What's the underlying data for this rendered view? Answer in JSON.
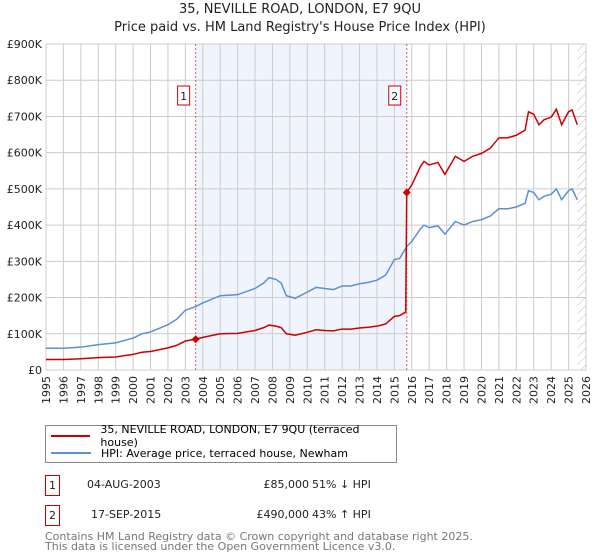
{
  "chart_data": {
    "type": "line",
    "title": "35, NEVILLE ROAD, LONDON, E7 9QU",
    "subtitle": "Price paid vs. HM Land Registry's House Price Index (HPI)",
    "xlim": [
      1995,
      2026
    ],
    "ylim": [
      0,
      900000
    ],
    "x_ticks": [
      "1995",
      "1996",
      "1997",
      "1998",
      "1999",
      "2000",
      "2001",
      "2002",
      "2003",
      "2004",
      "2005",
      "2006",
      "2007",
      "2008",
      "2009",
      "2010",
      "2011",
      "2012",
      "2013",
      "2014",
      "2015",
      "2016",
      "2017",
      "2018",
      "2019",
      "2020",
      "2021",
      "2022",
      "2023",
      "2024",
      "2025",
      "2026"
    ],
    "y_ticks": [
      {
        "v": 0,
        "l": "£0"
      },
      {
        "v": 100000,
        "l": "£100K"
      },
      {
        "v": 200000,
        "l": "£200K"
      },
      {
        "v": 300000,
        "l": "£300K"
      },
      {
        "v": 400000,
        "l": "£400K"
      },
      {
        "v": 500000,
        "l": "£500K"
      },
      {
        "v": 600000,
        "l": "£600K"
      },
      {
        "v": 700000,
        "l": "£700K"
      },
      {
        "v": 800000,
        "l": "£800K"
      },
      {
        "v": 900000,
        "l": "£900K"
      }
    ],
    "grid": true,
    "shaded_range": [
      2003.59,
      2015.71
    ],
    "forecast_hatch_from": 2025.5,
    "series": [
      {
        "name": "35, NEVILLE ROAD, LONDON, E7 9QU (terraced house)",
        "color": "#cc0000",
        "x": [
          1995,
          1996,
          1997,
          1998,
          1999,
          2000,
          2000.5,
          2001,
          2002,
          2002.5,
          2003,
          2003.59,
          2004,
          2005,
          2006,
          2007,
          2007.5,
          2007.8,
          2008.2,
          2008.5,
          2008.8,
          2009.3,
          2010,
          2010.5,
          2011,
          2011.5,
          2012,
          2012.5,
          2013,
          2013.5,
          2014,
          2014.5,
          2015,
          2015.3,
          2015.65,
          2015.71,
          2016,
          2016.5,
          2016.7,
          2017,
          2017.5,
          2017.9,
          2018.5,
          2019,
          2019.5,
          2020,
          2020.5,
          2021,
          2021.5,
          2022,
          2022.5,
          2022.7,
          2023,
          2023.3,
          2023.6,
          2024,
          2024.3,
          2024.6,
          2025,
          2025.2,
          2025.5
        ],
        "y": [
          29000,
          29000,
          31000,
          34000,
          36000,
          43000,
          49000,
          51000,
          61000,
          68000,
          80000,
          85000,
          90000,
          100000,
          101000,
          109000,
          117000,
          124000,
          121000,
          117000,
          100000,
          96000,
          104000,
          111000,
          109000,
          108000,
          113000,
          113000,
          116000,
          118000,
          121000,
          127000,
          148000,
          150000,
          160000,
          490000,
          511000,
          562000,
          576000,
          566000,
          573000,
          540000,
          590000,
          576000,
          590000,
          598000,
          612000,
          641000,
          641000,
          648000,
          662000,
          713000,
          706000,
          677000,
          691000,
          698000,
          720000,
          677000,
          713000,
          718000,
          677000
        ]
      },
      {
        "name": "HPI: Average price, terraced house, Newham",
        "color": "#5b8fd6",
        "x": [
          1995,
          1996,
          1997,
          1998,
          1999,
          2000,
          2000.5,
          2001,
          2002,
          2002.5,
          2003,
          2003.59,
          2004,
          2005,
          2006,
          2007,
          2007.5,
          2007.8,
          2008.2,
          2008.5,
          2008.8,
          2009.3,
          2010,
          2010.5,
          2011,
          2011.5,
          2012,
          2012.5,
          2013,
          2013.5,
          2014,
          2014.5,
          2015,
          2015.3,
          2015.7,
          2016,
          2016.5,
          2016.7,
          2017,
          2017.5,
          2017.9,
          2018.5,
          2019,
          2019.5,
          2020,
          2020.5,
          2021,
          2021.5,
          2022,
          2022.5,
          2022.7,
          2023,
          2023.3,
          2023.6,
          2024,
          2024.3,
          2024.6,
          2025,
          2025.2,
          2025.5
        ],
        "y": [
          60000,
          60000,
          63000,
          70000,
          75000,
          88000,
          100000,
          105000,
          125000,
          140000,
          165000,
          175000,
          185000,
          205000,
          208000,
          225000,
          240000,
          255000,
          250000,
          240000,
          205000,
          198000,
          215000,
          228000,
          225000,
          222000,
          232000,
          232000,
          238000,
          242000,
          248000,
          262000,
          305000,
          308000,
          340000,
          355000,
          390000,
          400000,
          393000,
          398000,
          375000,
          410000,
          400000,
          410000,
          415000,
          425000,
          445000,
          445000,
          450000,
          460000,
          495000,
          490000,
          470000,
          480000,
          485000,
          500000,
          470000,
          495000,
          500000,
          470000
        ]
      }
    ],
    "sales": [
      {
        "n": "1",
        "x": 2003.59,
        "y": 85000
      },
      {
        "n": "2",
        "x": 2015.71,
        "y": 490000
      }
    ]
  },
  "legend": [
    "35, NEVILLE ROAD, LONDON, E7 9QU (terraced house)",
    "HPI: Average price, terraced house, Newham"
  ],
  "transactions": [
    {
      "n": "1",
      "date": "04-AUG-2003",
      "price": "£85,000",
      "hpi": "51% ↓ HPI"
    },
    {
      "n": "2",
      "date": "17-SEP-2015",
      "price": "£490,000",
      "hpi": "43% ↑ HPI"
    }
  ],
  "footer": [
    "Contains HM Land Registry data © Crown copyright and database right 2025.",
    "This data is licensed under the Open Government Licence v3.0."
  ]
}
